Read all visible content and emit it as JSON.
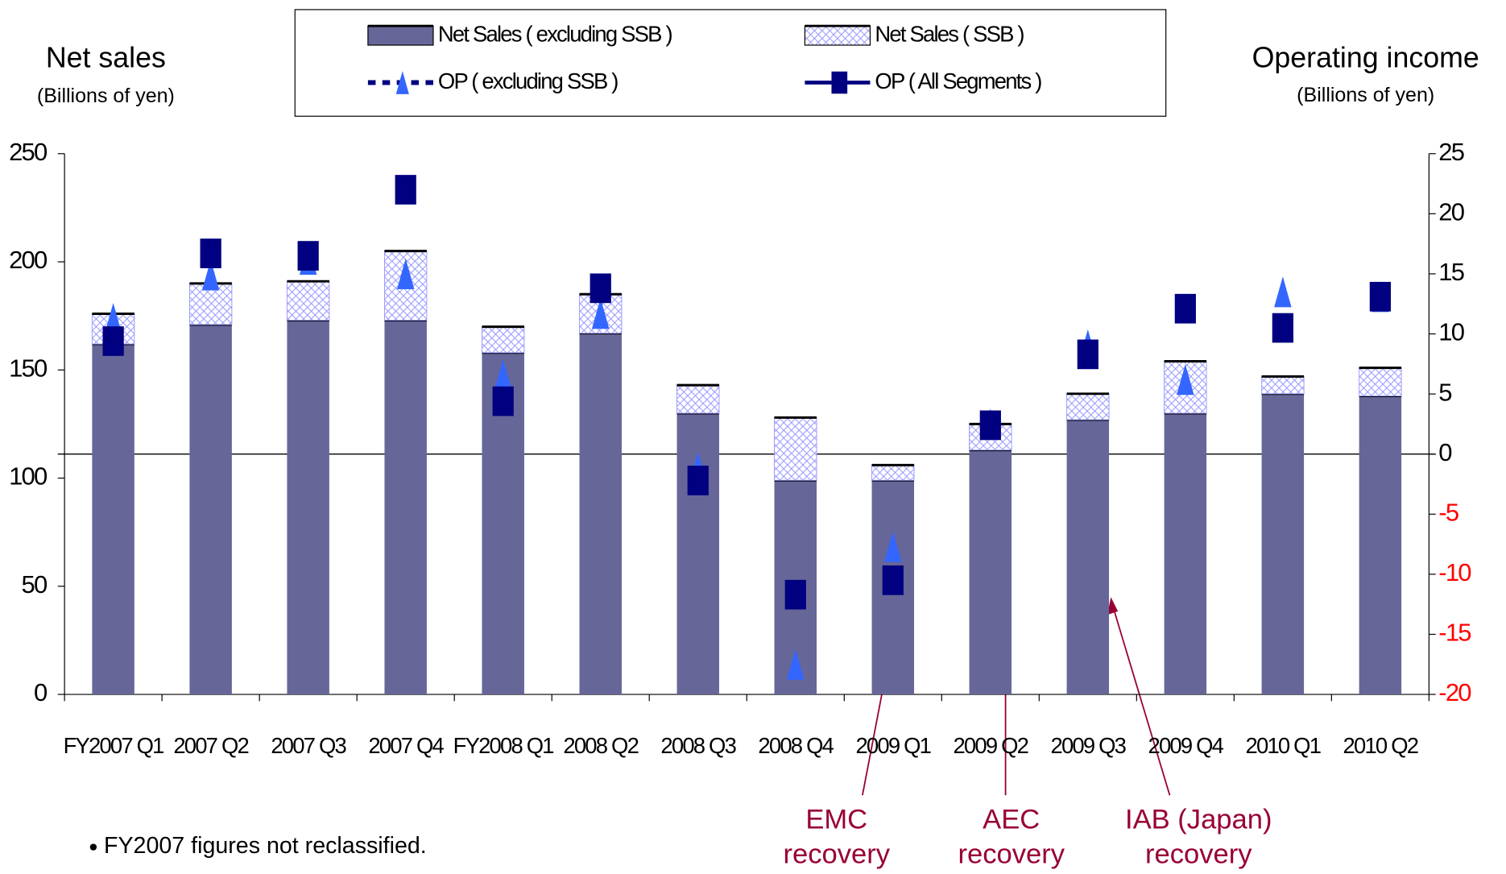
{
  "chart_data": {
    "type": "bar",
    "y_label": "Net sales",
    "y_sublabel": "(Billions of yen)",
    "y2_label": "Operating income",
    "y2_sublabel": "(Billions of yen)",
    "categories": [
      "FY2007 Q1",
      "2007 Q2",
      "2007 Q3",
      "2007 Q4",
      "FY2008 Q1",
      "2008 Q2",
      "2008 Q3",
      "2008 Q4",
      "2009 Q1",
      "2009 Q2",
      "2009 Q3",
      "2009 Q4",
      "2010 Q1",
      "2010 Q2"
    ],
    "series": [
      {
        "name": "Net Sales ( excluding SSB )",
        "type": "bar",
        "stacked": true,
        "color": "#666699",
        "values": [
          162,
          171,
          173,
          173,
          158,
          167,
          130,
          99,
          99,
          113,
          127,
          130,
          139,
          138
        ]
      },
      {
        "name": "Net Sales ( SSB )",
        "type": "bar",
        "stacked": true,
        "color": "#9999ff",
        "pattern": "crosshatch",
        "values": [
          14,
          19,
          18,
          32,
          12,
          18,
          13,
          29,
          7,
          12,
          12,
          24,
          8,
          13
        ]
      },
      {
        "name": "OP ( excluding SSB )",
        "type": "line",
        "axis": "y2",
        "color": "#3366ff",
        "line_color": "#000080",
        "dashed": true,
        "marker": "triangle",
        "values": [
          11.3,
          14.9,
          16.2,
          15,
          6.6,
          11.7,
          -1.1,
          -17.5,
          -7.7,
          2.5,
          9.1,
          6.2,
          13.5,
          13.1
        ]
      },
      {
        "name": "OP ( All Segments )",
        "type": "line",
        "axis": "y2",
        "color": "#000080",
        "line_color": "#000080",
        "dashed": false,
        "marker": "square",
        "values": [
          9.4,
          16.7,
          16.5,
          22,
          4.4,
          13.8,
          -2.2,
          -11.7,
          -10.5,
          2.4,
          8.3,
          12.1,
          10.5,
          13.1
        ]
      }
    ],
    "ylim": [
      0,
      250
    ],
    "yticks": [
      0,
      50,
      100,
      150,
      200,
      250
    ],
    "y2lim": [
      -20,
      25
    ],
    "y2ticks": [
      -20,
      -15,
      -10,
      -5,
      0,
      5,
      10,
      15,
      20,
      25
    ],
    "negative_tick_color": "#ff0000",
    "legend": "top",
    "annotations": [
      {
        "lines": [
          "EMC",
          "recovery"
        ]
      },
      {
        "lines": [
          "AEC",
          "recovery"
        ]
      },
      {
        "lines": [
          "IAB (Japan)",
          "recovery"
        ]
      }
    ],
    "annotation_color": "#990033",
    "footnote": "FY2007 figures not reclassified."
  }
}
